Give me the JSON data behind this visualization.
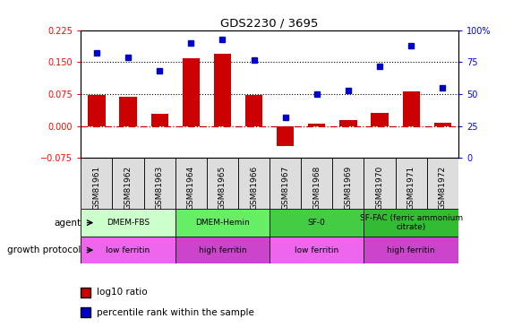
{
  "title": "GDS2230 / 3695",
  "samples": [
    "GSM81961",
    "GSM81962",
    "GSM81963",
    "GSM81964",
    "GSM81965",
    "GSM81966",
    "GSM81967",
    "GSM81968",
    "GSM81969",
    "GSM81970",
    "GSM81971",
    "GSM81972"
  ],
  "log10_ratio": [
    0.073,
    0.068,
    0.028,
    0.16,
    0.17,
    0.073,
    -0.048,
    0.005,
    0.013,
    0.03,
    0.082,
    0.008
  ],
  "percentile_rank": [
    82,
    79,
    68,
    90,
    93,
    77,
    32,
    50,
    53,
    72,
    88,
    55
  ],
  "bar_color": "#cc0000",
  "dot_color": "#0000cc",
  "ylim_left": [
    -0.075,
    0.225
  ],
  "ylim_right": [
    0,
    100
  ],
  "yticks_left": [
    -0.075,
    0,
    0.075,
    0.15,
    0.225
  ],
  "yticks_right": [
    0,
    25,
    50,
    75,
    100
  ],
  "hlines": [
    0.075,
    0.15
  ],
  "agent_groups": [
    {
      "label": "DMEM-FBS",
      "start": 0,
      "end": 3,
      "color": "#ccffcc"
    },
    {
      "label": "DMEM-Hemin",
      "start": 3,
      "end": 6,
      "color": "#66ee66"
    },
    {
      "label": "SF-0",
      "start": 6,
      "end": 9,
      "color": "#44cc44"
    },
    {
      "label": "SF-FAC (ferric ammonium\ncitrate)",
      "start": 9,
      "end": 12,
      "color": "#33bb33"
    }
  ],
  "protocol_groups": [
    {
      "label": "low ferritin",
      "start": 0,
      "end": 3,
      "color": "#ee66ee"
    },
    {
      "label": "high ferritin",
      "start": 3,
      "end": 6,
      "color": "#cc44cc"
    },
    {
      "label": "low ferritin",
      "start": 6,
      "end": 9,
      "color": "#ee66ee"
    },
    {
      "label": "high ferritin",
      "start": 9,
      "end": 12,
      "color": "#cc44cc"
    }
  ],
  "agent_label": "agent",
  "protocol_label": "growth protocol",
  "legend_bar_label": "log10 ratio",
  "legend_dot_label": "percentile rank within the sample",
  "sample_box_color": "#dddddd",
  "background_color": "#ffffff"
}
